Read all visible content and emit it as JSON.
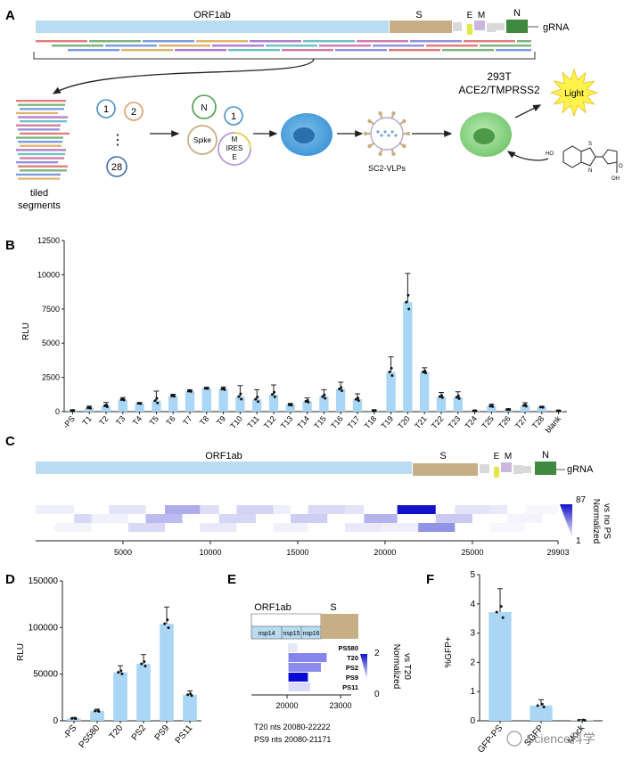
{
  "panels": {
    "A": "A",
    "B": "B",
    "C": "C",
    "D": "D",
    "E": "E",
    "F": "F"
  },
  "genome": {
    "orf1ab": "ORF1ab",
    "s": "S",
    "e": "E",
    "m": "M",
    "n": "N",
    "grna": "gRNA",
    "colors": {
      "orf1ab": "#b9dcf2",
      "s": "#c8ae85",
      "e": "#e3e84a",
      "m": "#cdb6e0",
      "n": "#3f8a3f",
      "small": "#d9d9d9"
    }
  },
  "panelA": {
    "tiled": "tiled",
    "segments": "segments",
    "plasmid_1": "1",
    "plasmid_2": "2",
    "plasmid_28": "28",
    "dots": "⋮",
    "pN": "N",
    "p1b": "1",
    "spike": "Spike",
    "m": "M",
    "ires": "IRES",
    "e": "E",
    "vlp": "SC2-VLPs",
    "cell_line": "293T",
    "cell_receptors": "ACE2/TMPRSS2",
    "light": "Light",
    "ho": "HO",
    "oh": "OH",
    "o": "O",
    "s_atom": "S",
    "n_atom": "N"
  },
  "panelB": {
    "chart_data": {
      "type": "bar",
      "ylabel": "RLU",
      "ylim": [
        0,
        12500
      ],
      "yticks": [
        "12500",
        "10000",
        "7500",
        "5000",
        "2500",
        "0"
      ],
      "categories": [
        "-PS",
        "T1",
        "T2",
        "T3",
        "T4",
        "T5",
        "T6",
        "T7",
        "T8",
        "T9",
        "T10",
        "T11",
        "T12",
        "T13",
        "T14",
        "T15",
        "T16",
        "T17",
        "T18",
        "T19",
        "T20",
        "T21",
        "T22",
        "T23",
        "T24",
        "T25",
        "T26",
        "T27",
        "T28",
        "blank"
      ],
      "values": [
        80,
        280,
        420,
        880,
        600,
        800,
        1150,
        1500,
        1700,
        1650,
        1100,
        900,
        1250,
        500,
        750,
        1100,
        1650,
        900,
        80,
        2900,
        8000,
        2900,
        1100,
        1050,
        60,
        400,
        150,
        450,
        330,
        60
      ],
      "errors": [
        40,
        120,
        250,
        150,
        60,
        700,
        120,
        100,
        80,
        150,
        800,
        700,
        700,
        100,
        250,
        500,
        500,
        400,
        30,
        1100,
        2100,
        300,
        300,
        400,
        40,
        150,
        60,
        200,
        60,
        30
      ],
      "color": "#a9d6f5"
    }
  },
  "panelC": {
    "xticks": [
      "5000",
      "10000",
      "15000",
      "20000",
      "25000",
      "29903"
    ],
    "scale_max": "87",
    "scale_min": "1",
    "scale_label_1": "Normalized",
    "scale_label_2": "vs no PS",
    "chart_data": {
      "type": "heatmap",
      "x_range": [
        1,
        29903
      ],
      "tiles": [
        {
          "start": 1,
          "end": 2200,
          "row": 0,
          "value": 6
        },
        {
          "start": 2200,
          "end": 4200,
          "row": 1,
          "value": 14
        },
        {
          "start": 4200,
          "end": 6300,
          "row": 0,
          "value": 10
        },
        {
          "start": 6300,
          "end": 8400,
          "row": 1,
          "value": 25
        },
        {
          "start": 8400,
          "end": 10500,
          "row": 0,
          "value": 12
        },
        {
          "start": 10500,
          "end": 12600,
          "row": 1,
          "value": 15
        },
        {
          "start": 12600,
          "end": 14600,
          "row": 0,
          "value": 6
        },
        {
          "start": 14600,
          "end": 16700,
          "row": 1,
          "value": 18
        },
        {
          "start": 16700,
          "end": 18800,
          "row": 0,
          "value": 10
        },
        {
          "start": 18800,
          "end": 20700,
          "row": 1,
          "value": 28
        },
        {
          "start": 20700,
          "end": 22900,
          "row": 0,
          "value": 87
        },
        {
          "start": 22900,
          "end": 25000,
          "row": 1,
          "value": 20
        },
        {
          "start": 25000,
          "end": 27000,
          "row": 0,
          "value": 8
        },
        {
          "start": 27000,
          "end": 29000,
          "row": 1,
          "value": 4
        },
        {
          "start": 1100,
          "end": 3200,
          "row": 2,
          "value": 4
        },
        {
          "start": 3200,
          "end": 5300,
          "row": 1,
          "value": 5
        },
        {
          "start": 5300,
          "end": 7400,
          "row": 2,
          "value": 14
        },
        {
          "start": 7400,
          "end": 9400,
          "row": 0,
          "value": 30
        },
        {
          "start": 9400,
          "end": 11500,
          "row": 2,
          "value": 8
        },
        {
          "start": 11500,
          "end": 13600,
          "row": 0,
          "value": 16
        },
        {
          "start": 13600,
          "end": 15600,
          "row": 2,
          "value": 5
        },
        {
          "start": 15600,
          "end": 17700,
          "row": 0,
          "value": 14
        },
        {
          "start": 17700,
          "end": 19800,
          "row": 2,
          "value": 8
        },
        {
          "start": 19800,
          "end": 21900,
          "row": 2,
          "value": 6
        },
        {
          "start": 21900,
          "end": 24000,
          "row": 2,
          "value": 40
        },
        {
          "start": 24000,
          "end": 26000,
          "row": 0,
          "value": 10
        },
        {
          "start": 26000,
          "end": 28000,
          "row": 2,
          "value": 3
        },
        {
          "start": 28000,
          "end": 29903,
          "row": 0,
          "value": 3
        }
      ]
    }
  },
  "panelD": {
    "chart_data": {
      "type": "bar",
      "ylabel": "RLU",
      "ylim": [
        0,
        150000
      ],
      "yticks": [
        "150000",
        "100000",
        "50000",
        "0"
      ],
      "categories": [
        "-PS",
        "PS580",
        "T20",
        "PS2",
        "PS9",
        "PS11"
      ],
      "values": [
        2500,
        10500,
        52000,
        61000,
        104000,
        28000
      ],
      "errors": [
        1000,
        2000,
        7000,
        10000,
        18000,
        4000
      ],
      "color": "#a9d6f5"
    }
  },
  "panelE": {
    "orf1ab": "ORF1ab",
    "s": "S",
    "nsp14": "nsp14",
    "nsp15": "nsp15",
    "nsp16": "nsp16",
    "rows": [
      "PS580",
      "T20",
      "PS2",
      "PS9",
      "PS11"
    ],
    "xticks": [
      "20000",
      "23000"
    ],
    "scale_max": "2",
    "scale_min": "0",
    "scale_label_1": "Normalized",
    "scale_label_2": "vs T20",
    "note_1": "T20 nts 20080-22222",
    "note_2": "PS9 nts 20080-21171",
    "chart_data": {
      "type": "heatmap",
      "rows": [
        "PS580",
        "T20",
        "PS2",
        "PS9",
        "PS11"
      ],
      "ranges": [
        [
          20040,
          20580,
          0.2
        ],
        [
          20080,
          22222,
          1.0
        ],
        [
          20080,
          21900,
          0.95
        ],
        [
          20080,
          21171,
          2.0
        ],
        [
          20080,
          21300,
          0.3
        ]
      ]
    }
  },
  "panelF": {
    "chart_data": {
      "type": "bar",
      "ylabel": "%GFP+",
      "ylim": [
        0,
        5
      ],
      "yticks": [
        "5",
        "4",
        "3",
        "2",
        "1",
        "0"
      ],
      "categories": [
        "GFP-PS",
        "SGFP",
        "Mock"
      ],
      "values": [
        3.72,
        0.52,
        0.02
      ],
      "errors": [
        0.8,
        0.2,
        0.02
      ],
      "color": "#a9d6f5"
    }
  },
  "watermark": "Science科学"
}
